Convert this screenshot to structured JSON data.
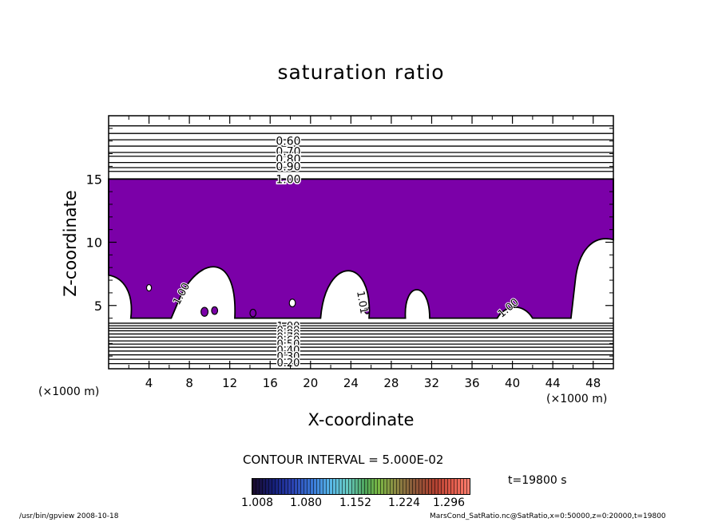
{
  "chart_data": {
    "type": "contour",
    "title": "saturation ratio",
    "xlabel": "X-coordinate",
    "ylabel": "Z-coordinate",
    "x_unit": "(×1000 m)",
    "xlim": [
      0,
      50
    ],
    "ylim": [
      0,
      20
    ],
    "x_ticks": [
      "4",
      "8",
      "12",
      "16",
      "20",
      "24",
      "28",
      "32",
      "36",
      "40",
      "44",
      "48"
    ],
    "y_ticks": [
      "5",
      "10",
      "15"
    ],
    "upper_contour_labels": [
      "0.60",
      "0.70",
      "0.80",
      "0.90",
      "1.00"
    ],
    "lower_contour_labels": [
      "1.00",
      "0.90",
      "0.80",
      "0.70",
      "0.60",
      "0.50",
      "0.40",
      "0.30",
      "0.20"
    ],
    "inline_labels": [
      "1.00",
      "1.01",
      "1.00"
    ],
    "fill_color": "#7b00a8",
    "contour_interval": "CONTOUR INTERVAL = 5.000E-02",
    "colorbar_ticks": [
      "1.008",
      "1.080",
      "1.152",
      "1.224",
      "1.296"
    ],
    "time": "t=19800 s"
  },
  "footer": {
    "left": "/usr/bin/gpview   2008-10-18",
    "right": "MarsCond_SatRatio.nc@SatRatio,x=0:50000,z=0:20000,t=19800"
  }
}
